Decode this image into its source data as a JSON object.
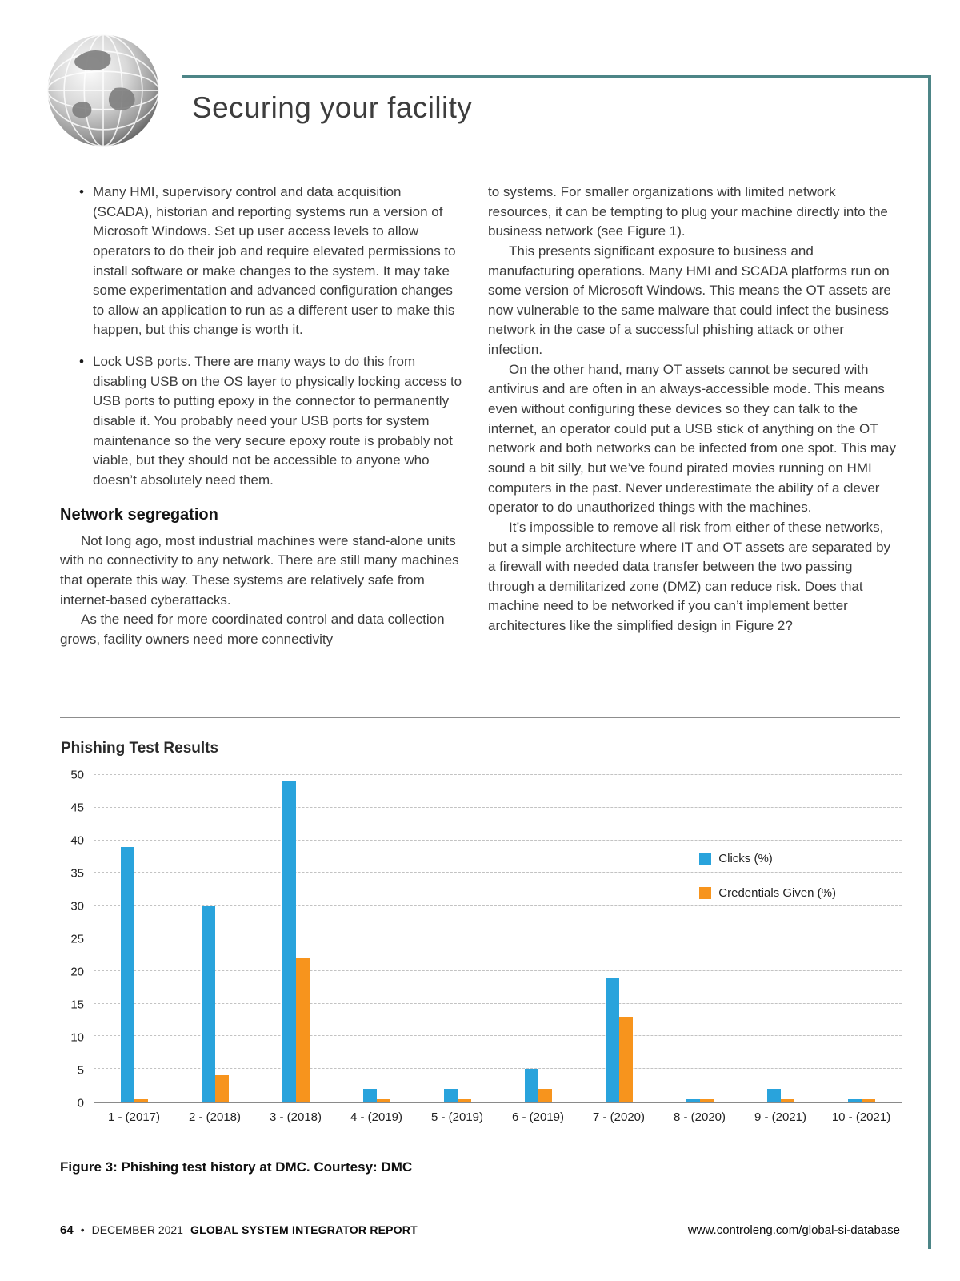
{
  "header": {
    "title": "Securing your facility"
  },
  "article": {
    "left_column": {
      "bullets": [
        "Many HMI, supervisory control and data acquisition (SCADA), historian and reporting systems run a version of Microsoft Windows. Set up user access levels to allow operators to do their job and require elevated permissions to install software or make changes to the system. It may take some experimentation and advanced configuration changes to allow an application to run as a different user to make this happen, but this change is worth it.",
        "Lock USB ports. There are many ways to do this from disabling USB on the OS layer to physically locking access to USB ports to putting epoxy in the connector to permanently disable it. You probably need your USB ports for system maintenance so the very secure epoxy route is probably not viable, but they should not be accessible to anyone who doesn’t absolutely need them."
      ],
      "section_heading": "Network segregation",
      "paragraphs": [
        "Not long ago, most industrial machines were stand-alone units with no connectivity to any network. There are still many machines that operate this way. These systems are relatively safe from internet-based cyberattacks.",
        "As the need for more coordinated control and data collection grows, facility owners need more connectivity"
      ]
    },
    "right_column": {
      "paragraphs": [
        "to systems. For smaller organizations with limited network resources, it can be tempting to plug your machine directly into the business network (see Figure 1).",
        "This presents significant exposure to business and manufacturing operations. Many HMI and SCADA platforms run on some version of Microsoft Windows. This means the OT assets are now vulnerable to the same malware that could infect the business network in the case of a successful phishing attack or other infection.",
        "On the other hand, many OT assets cannot be secured with antivirus and are often in an always-accessible mode. This means even without configuring these devices so they can talk to the internet, an operator could put a USB stick of anything on the OT network and both networks can be infected from one spot. This may sound a bit silly, but we’ve found pirated movies running on HMI computers in the past. Never underestimate the ability of a clever operator to do unauthorized things with the machines.",
        "It’s impossible to remove all risk from either of these networks, but a simple architecture where IT and OT assets are separated by a firewall with needed data transfer between the two passing through a demilitarized zone (DMZ) can reduce risk. Does that machine need to be networked if you can’t implement better architectures like the simplified design in Figure 2?"
      ]
    }
  },
  "chart_data": {
    "type": "bar",
    "title": "Phishing Test Results",
    "categories": [
      "1 - (2017)",
      "2 - (2018)",
      "3 - (2018)",
      "4 - (2019)",
      "5 - (2019)",
      "6 - (2019)",
      "7 - (2020)",
      "8 - (2020)",
      "9 - (2021)",
      "10 - (2021)"
    ],
    "series": [
      {
        "key": "clicks",
        "name": "Clicks (%)",
        "color": "#29a3dc",
        "values": [
          39,
          30,
          49,
          2,
          2,
          5,
          19,
          0.4,
          2,
          0.4
        ]
      },
      {
        "key": "credentials-given",
        "name": "Credentials Given (%)",
        "color": "#f7941d",
        "values": [
          0.4,
          4,
          22,
          0.4,
          0.4,
          2,
          13,
          0.4,
          0.4,
          0.4
        ]
      }
    ],
    "xlabel": "",
    "ylabel": "",
    "ylim": [
      0,
      50
    ],
    "ytick": 5,
    "grid": "horizontal-dashed",
    "legend_position": "inside-right"
  },
  "figure": {
    "caption": "Figure 3: Phishing test history at DMC. Courtesy: DMC"
  },
  "footer": {
    "page_number": "64",
    "separator": "•",
    "date": "DECEMBER 2021",
    "publication": "GLOBAL SYSTEM INTEGRATOR REPORT",
    "url": "www.controleng.com/global-si-database"
  },
  "colors": {
    "accent_teal": "#4d8587",
    "bar_blue": "#29a3dc",
    "bar_orange": "#f7941d"
  }
}
